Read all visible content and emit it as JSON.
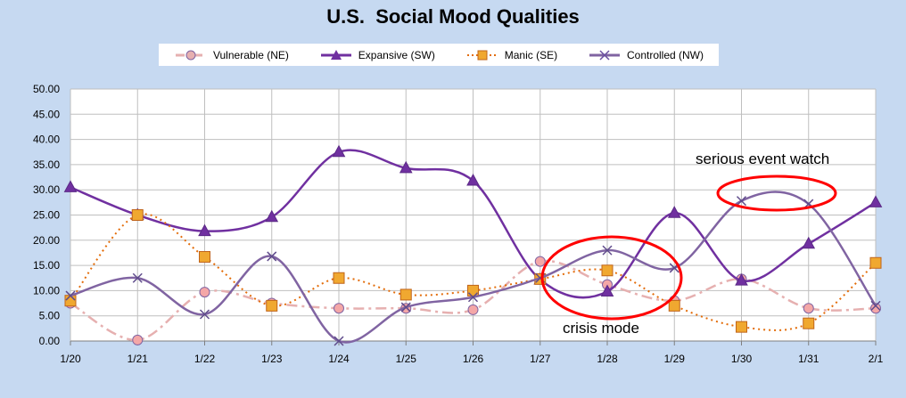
{
  "chart_data": {
    "type": "line",
    "title": "U.S.  Social Mood Qualities",
    "categories": [
      "1/20",
      "1/21",
      "1/22",
      "1/23",
      "1/24",
      "1/25",
      "1/26",
      "1/27",
      "1/28",
      "1/29",
      "1/30",
      "1/31",
      "2/1"
    ],
    "ylim": [
      0,
      50
    ],
    "yticks": [
      "0.00",
      "5.00",
      "10.00",
      "15.00",
      "20.00",
      "25.00",
      "30.00",
      "35.00",
      "40.00",
      "45.00",
      "50.00"
    ],
    "grid": true,
    "legend_position": "top",
    "series": [
      {
        "name": "Vulnerable (NE)",
        "color": "#e6b0b0",
        "marker": "circle",
        "dash": "dashdot",
        "values": [
          7.5,
          0.2,
          9.7,
          7.5,
          6.5,
          6.5,
          6.2,
          15.8,
          11.2,
          8.0,
          12.3,
          6.5,
          6.5
        ]
      },
      {
        "name": "Expansive (SW)",
        "color": "#7030a0",
        "marker": "triangle",
        "dash": "solid",
        "values": [
          30.5,
          25.0,
          21.8,
          24.6,
          37.5,
          34.3,
          31.8,
          12.2,
          9.8,
          25.4,
          12.0,
          19.3,
          27.5
        ]
      },
      {
        "name": "Manic (SE)",
        "color": "#e36c09",
        "marker": "square",
        "dash": "dot",
        "values": [
          8.0,
          25.0,
          16.7,
          7.0,
          12.5,
          9.2,
          10.0,
          12.3,
          14.0,
          7.0,
          2.8,
          3.5,
          15.5
        ]
      },
      {
        "name": "Controlled (NW)",
        "color": "#8064a2",
        "marker": "x",
        "dash": "solid",
        "values": [
          9.0,
          12.5,
          5.3,
          16.8,
          0.0,
          6.7,
          8.7,
          12.5,
          18.0,
          14.5,
          27.8,
          27.2,
          7.0
        ]
      }
    ],
    "annotations": [
      "serious event watch",
      "crisis mode"
    ]
  }
}
